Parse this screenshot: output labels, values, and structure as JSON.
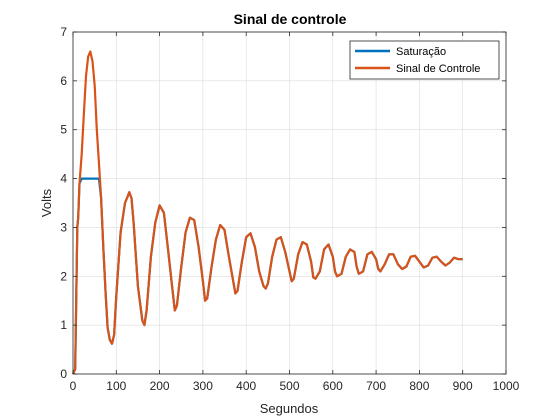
{
  "chart_data": {
    "type": "line",
    "title": "Sinal de controle",
    "xlabel": "Segundos",
    "ylabel": "Volts",
    "xlim": [
      0,
      1000
    ],
    "ylim": [
      0,
      7
    ],
    "xticks": [
      "0",
      "100",
      "200",
      "300",
      "400",
      "500",
      "600",
      "700",
      "800",
      "900",
      "1000"
    ],
    "yticks": [
      "0",
      "1",
      "2",
      "3",
      "4",
      "5",
      "6",
      "7"
    ],
    "grid": true,
    "legend_position": "top-right",
    "series": [
      {
        "name": "Saturação",
        "color": "#0072BD",
        "x": [
          0,
          5,
          10,
          12,
          15,
          20,
          30,
          40,
          50,
          55,
          60,
          65,
          70,
          75,
          80,
          85,
          90,
          95,
          100,
          110,
          120,
          130,
          135,
          140,
          150,
          160,
          165,
          170,
          180,
          190,
          200,
          210,
          220,
          230,
          235,
          240,
          250,
          260,
          270,
          280,
          290,
          300,
          305,
          310,
          320,
          330,
          340,
          350,
          360,
          370,
          375,
          380,
          390,
          400,
          410,
          420,
          430,
          440,
          445,
          450,
          460,
          470,
          480,
          490,
          500,
          505,
          510,
          520,
          530,
          540,
          550,
          555,
          560,
          570,
          580,
          590,
          600,
          605,
          610,
          620,
          630,
          640,
          650,
          655,
          660,
          670,
          680,
          690,
          700,
          705,
          710,
          720,
          730,
          740,
          750,
          760,
          770,
          780,
          790,
          800,
          810,
          820,
          830,
          840,
          850,
          860,
          870,
          880,
          890,
          900
        ],
        "values": [
          0,
          0.1,
          3.0,
          3.2,
          3.9,
          4.0,
          4.0,
          4.0,
          4.0,
          4.0,
          4.0,
          3.6,
          2.6,
          1.7,
          0.95,
          0.7,
          0.62,
          0.8,
          1.6,
          2.9,
          3.5,
          3.72,
          3.6,
          3.1,
          1.8,
          1.1,
          1.0,
          1.3,
          2.4,
          3.1,
          3.45,
          3.3,
          2.5,
          1.7,
          1.3,
          1.4,
          2.2,
          2.9,
          3.2,
          3.15,
          2.6,
          1.9,
          1.5,
          1.55,
          2.2,
          2.75,
          3.05,
          2.95,
          2.4,
          1.9,
          1.65,
          1.7,
          2.3,
          2.8,
          2.88,
          2.6,
          2.1,
          1.8,
          1.75,
          1.85,
          2.4,
          2.75,
          2.8,
          2.5,
          2.1,
          1.9,
          1.95,
          2.45,
          2.7,
          2.65,
          2.3,
          1.98,
          1.95,
          2.1,
          2.55,
          2.65,
          2.4,
          2.1,
          2.0,
          2.05,
          2.4,
          2.55,
          2.5,
          2.2,
          2.05,
          2.1,
          2.45,
          2.5,
          2.35,
          2.15,
          2.1,
          2.25,
          2.45,
          2.45,
          2.25,
          2.15,
          2.2,
          2.4,
          2.42,
          2.3,
          2.18,
          2.22,
          2.38,
          2.4,
          2.3,
          2.22,
          2.28,
          2.38,
          2.35,
          2.35
        ]
      },
      {
        "name": "Sinal de Controle",
        "color": "#D95319",
        "x": [
          0,
          5,
          10,
          12,
          15,
          20,
          25,
          30,
          35,
          40,
          45,
          50,
          55,
          60,
          65,
          70,
          75,
          80,
          85,
          90,
          95,
          100,
          110,
          120,
          130,
          135,
          140,
          150,
          160,
          165,
          170,
          180,
          190,
          200,
          210,
          220,
          230,
          235,
          240,
          250,
          260,
          270,
          280,
          290,
          300,
          305,
          310,
          320,
          330,
          340,
          350,
          360,
          370,
          375,
          380,
          390,
          400,
          410,
          420,
          430,
          440,
          445,
          450,
          460,
          470,
          480,
          490,
          500,
          505,
          510,
          520,
          530,
          540,
          550,
          555,
          560,
          570,
          580,
          590,
          600,
          605,
          610,
          620,
          630,
          640,
          650,
          655,
          660,
          670,
          680,
          690,
          700,
          705,
          710,
          720,
          730,
          740,
          750,
          760,
          770,
          780,
          790,
          800,
          810,
          820,
          830,
          840,
          850,
          860,
          870,
          880,
          890,
          900
        ],
        "values": [
          0,
          0.1,
          3.0,
          3.2,
          3.9,
          4.5,
          5.3,
          6.1,
          6.5,
          6.6,
          6.4,
          5.9,
          5.0,
          4.3,
          3.6,
          2.6,
          1.7,
          0.95,
          0.7,
          0.62,
          0.8,
          1.6,
          2.9,
          3.5,
          3.72,
          3.6,
          3.1,
          1.8,
          1.1,
          1.0,
          1.3,
          2.4,
          3.1,
          3.45,
          3.3,
          2.5,
          1.7,
          1.3,
          1.4,
          2.2,
          2.9,
          3.2,
          3.15,
          2.6,
          1.9,
          1.5,
          1.55,
          2.2,
          2.75,
          3.05,
          2.95,
          2.4,
          1.9,
          1.65,
          1.7,
          2.3,
          2.8,
          2.88,
          2.6,
          2.1,
          1.8,
          1.75,
          1.85,
          2.4,
          2.75,
          2.8,
          2.5,
          2.1,
          1.9,
          1.95,
          2.45,
          2.7,
          2.65,
          2.3,
          1.98,
          1.95,
          2.1,
          2.55,
          2.65,
          2.4,
          2.1,
          2.0,
          2.05,
          2.4,
          2.55,
          2.5,
          2.2,
          2.05,
          2.1,
          2.45,
          2.5,
          2.35,
          2.15,
          2.1,
          2.25,
          2.45,
          2.45,
          2.25,
          2.15,
          2.2,
          2.4,
          2.42,
          2.3,
          2.18,
          2.22,
          2.38,
          2.4,
          2.3,
          2.22,
          2.28,
          2.38,
          2.35,
          2.35
        ]
      }
    ]
  }
}
